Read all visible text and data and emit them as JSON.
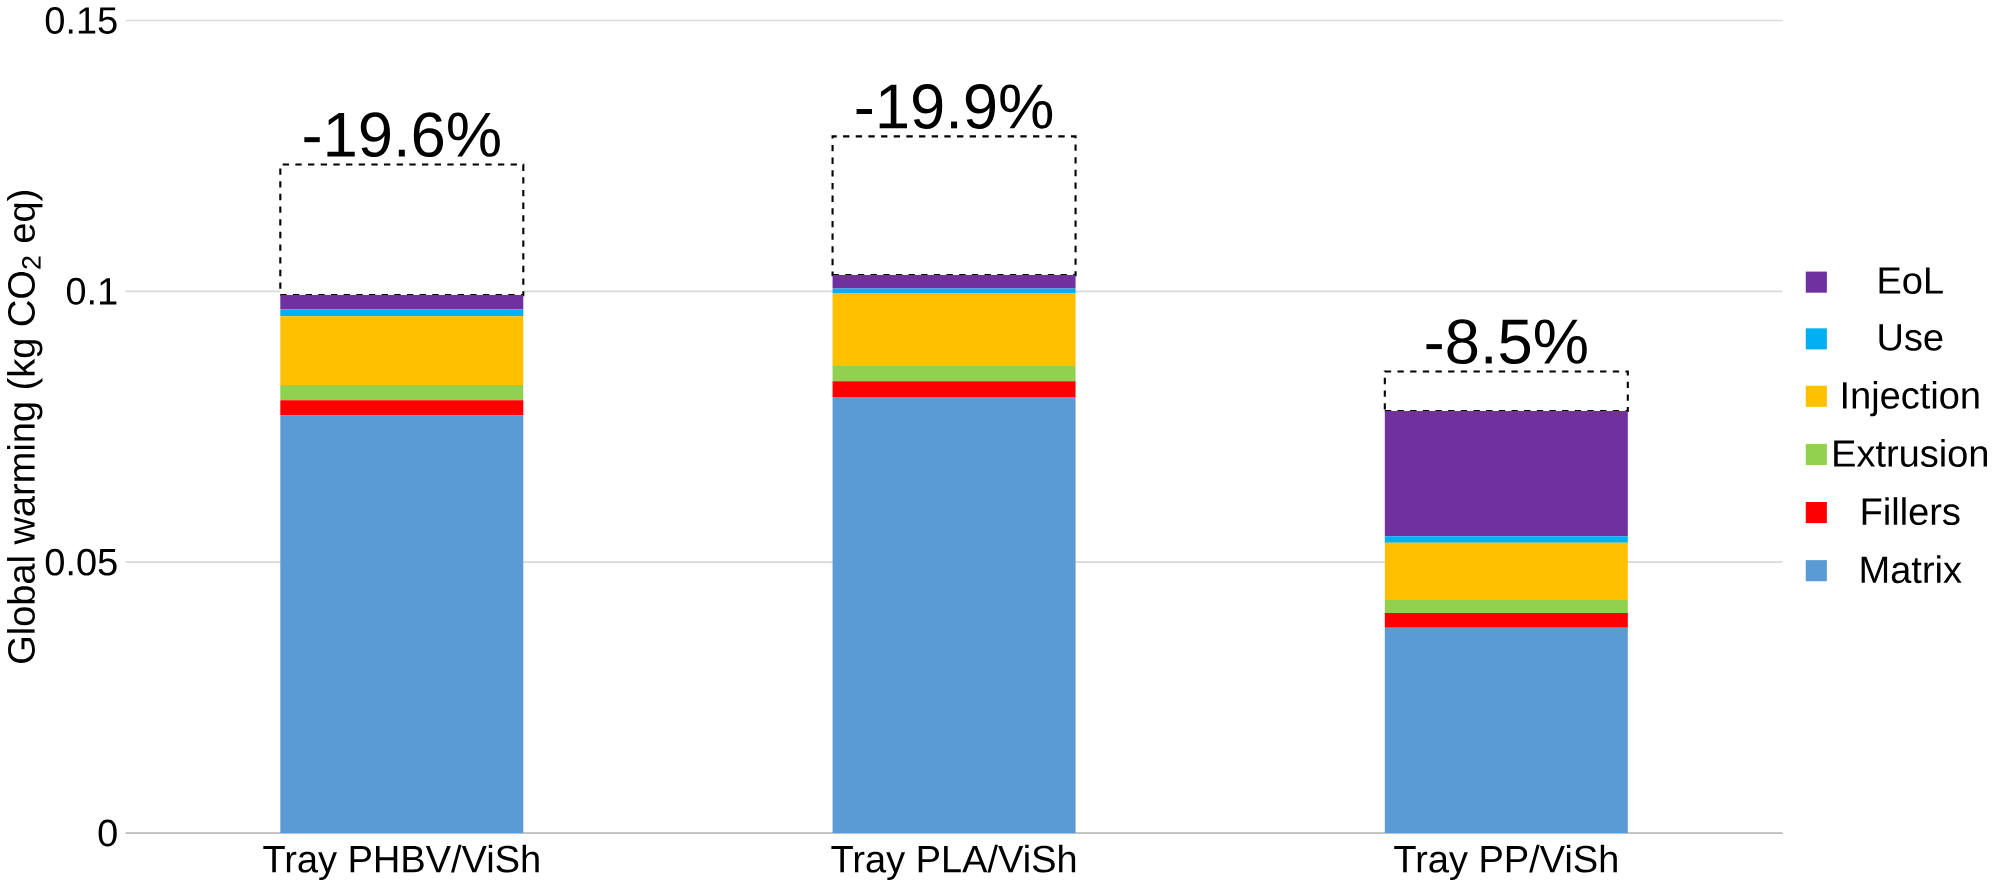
{
  "chart_data": {
    "type": "bar",
    "stacked": true,
    "ylabel": "Global warming (kg CO$_{2}$ eq)",
    "categories": [
      "Tray PHBV/ViSh",
      "Tray PLA/ViSh",
      "Tray PP/ViSh"
    ],
    "series": [
      {
        "name": "Matrix",
        "color": "#5b9bd5",
        "values": [
          0.0771,
          0.0805,
          0.0379
        ]
      },
      {
        "name": "Fillers",
        "color": "#ff0000",
        "values": [
          0.0028,
          0.0029,
          0.0027
        ]
      },
      {
        "name": "Extrusion",
        "color": "#92d050",
        "values": [
          0.0028,
          0.0028,
          0.0024
        ]
      },
      {
        "name": "Injection",
        "color": "#ffc000",
        "values": [
          0.0127,
          0.0135,
          0.0106
        ]
      },
      {
        "name": "Use",
        "color": "#00b0f0",
        "values": [
          0.0013,
          0.0008,
          0.0012
        ]
      },
      {
        "name": "EoL",
        "color": "#7030a0",
        "values": [
          0.0026,
          0.0025,
          0.0231
        ]
      },
      {
        "color": "#000000",
        "line_style": "dashed",
        "values": [
          0.0241,
          0.0256,
          0.0073
        ]
      }
    ],
    "annotations": [
      {
        "text": "-19.6%",
        "x": "Tray PHBV/ViSh",
        "y": 0.1234
      },
      {
        "text": "-19.9%",
        "x": "Tray PLA/ViSh",
        "y": 0.1286
      },
      {
        "text": "-8.5%",
        "x": "Tray PP/ViSh",
        "y": 0.0852
      }
    ],
    "ylim": [
      0,
      0.15
    ],
    "yticks": [
      0,
      0.05,
      0.1,
      0.15
    ],
    "grid": "y",
    "legend": "right"
  }
}
